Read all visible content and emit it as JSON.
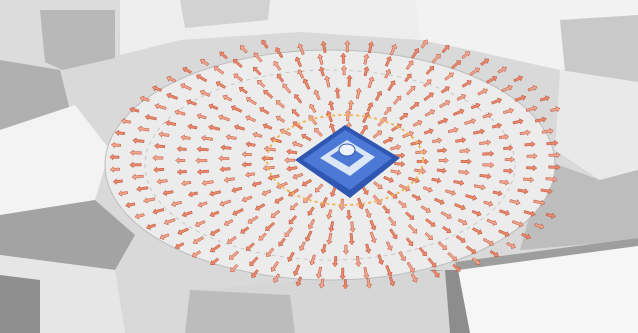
{
  "scene": {
    "background_color": "#d9d9d9",
    "plaza_color": "#ececec",
    "building_light": "#f4f4f4",
    "building_mid": "#dedede",
    "building_shadow": "#a9a9a9",
    "building_dark": "#8c8c8c",
    "arrow_fill": "#e8876a",
    "arrow_fill_alt": "#f1a48c",
    "arrow_edge": "#b5432a",
    "ring_color": "#f0b65a",
    "fountain_blue": "#4c79d6",
    "fountain_blue_dark": "#2f56b0",
    "fountain_light": "#dbe6f7"
  }
}
